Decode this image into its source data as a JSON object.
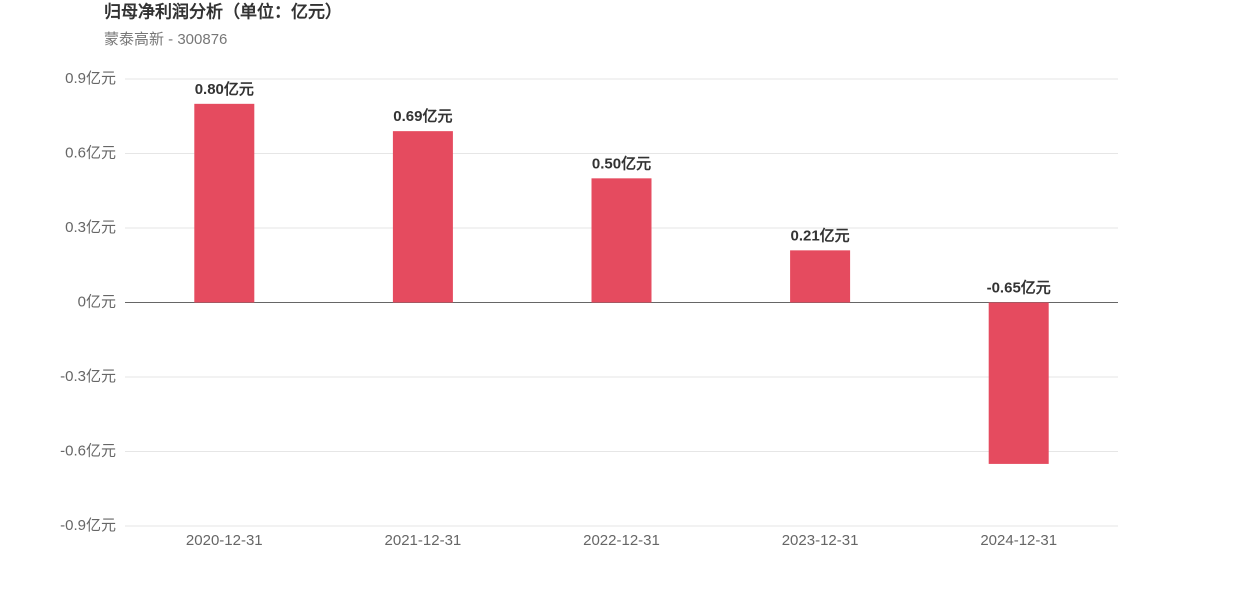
{
  "chart_data": {
    "type": "bar",
    "title": "归母净利润分析（单位：亿元）",
    "subtitle": "蒙泰高新 - 300876",
    "categories": [
      "2020-12-31",
      "2021-12-31",
      "2022-12-31",
      "2023-12-31",
      "2024-12-31"
    ],
    "values": [
      0.8,
      0.69,
      0.5,
      0.21,
      -0.65
    ],
    "value_labels": [
      "0.80亿元",
      "0.69亿元",
      "0.50亿元",
      "0.21亿元",
      "-0.65亿元"
    ],
    "color": "#e54b5f",
    "ylim": [
      -0.9,
      0.9
    ],
    "yticks": [
      {
        "value": -0.9,
        "label": "-0.9亿元"
      },
      {
        "value": -0.6,
        "label": "-0.6亿元"
      },
      {
        "value": -0.3,
        "label": "-0.3亿元"
      },
      {
        "value": 0,
        "label": "0亿元"
      },
      {
        "value": 0.3,
        "label": "0.3亿元"
      },
      {
        "value": 0.6,
        "label": "0.6亿元"
      },
      {
        "value": 0.9,
        "label": "0.9亿元"
      }
    ],
    "grid": true
  }
}
